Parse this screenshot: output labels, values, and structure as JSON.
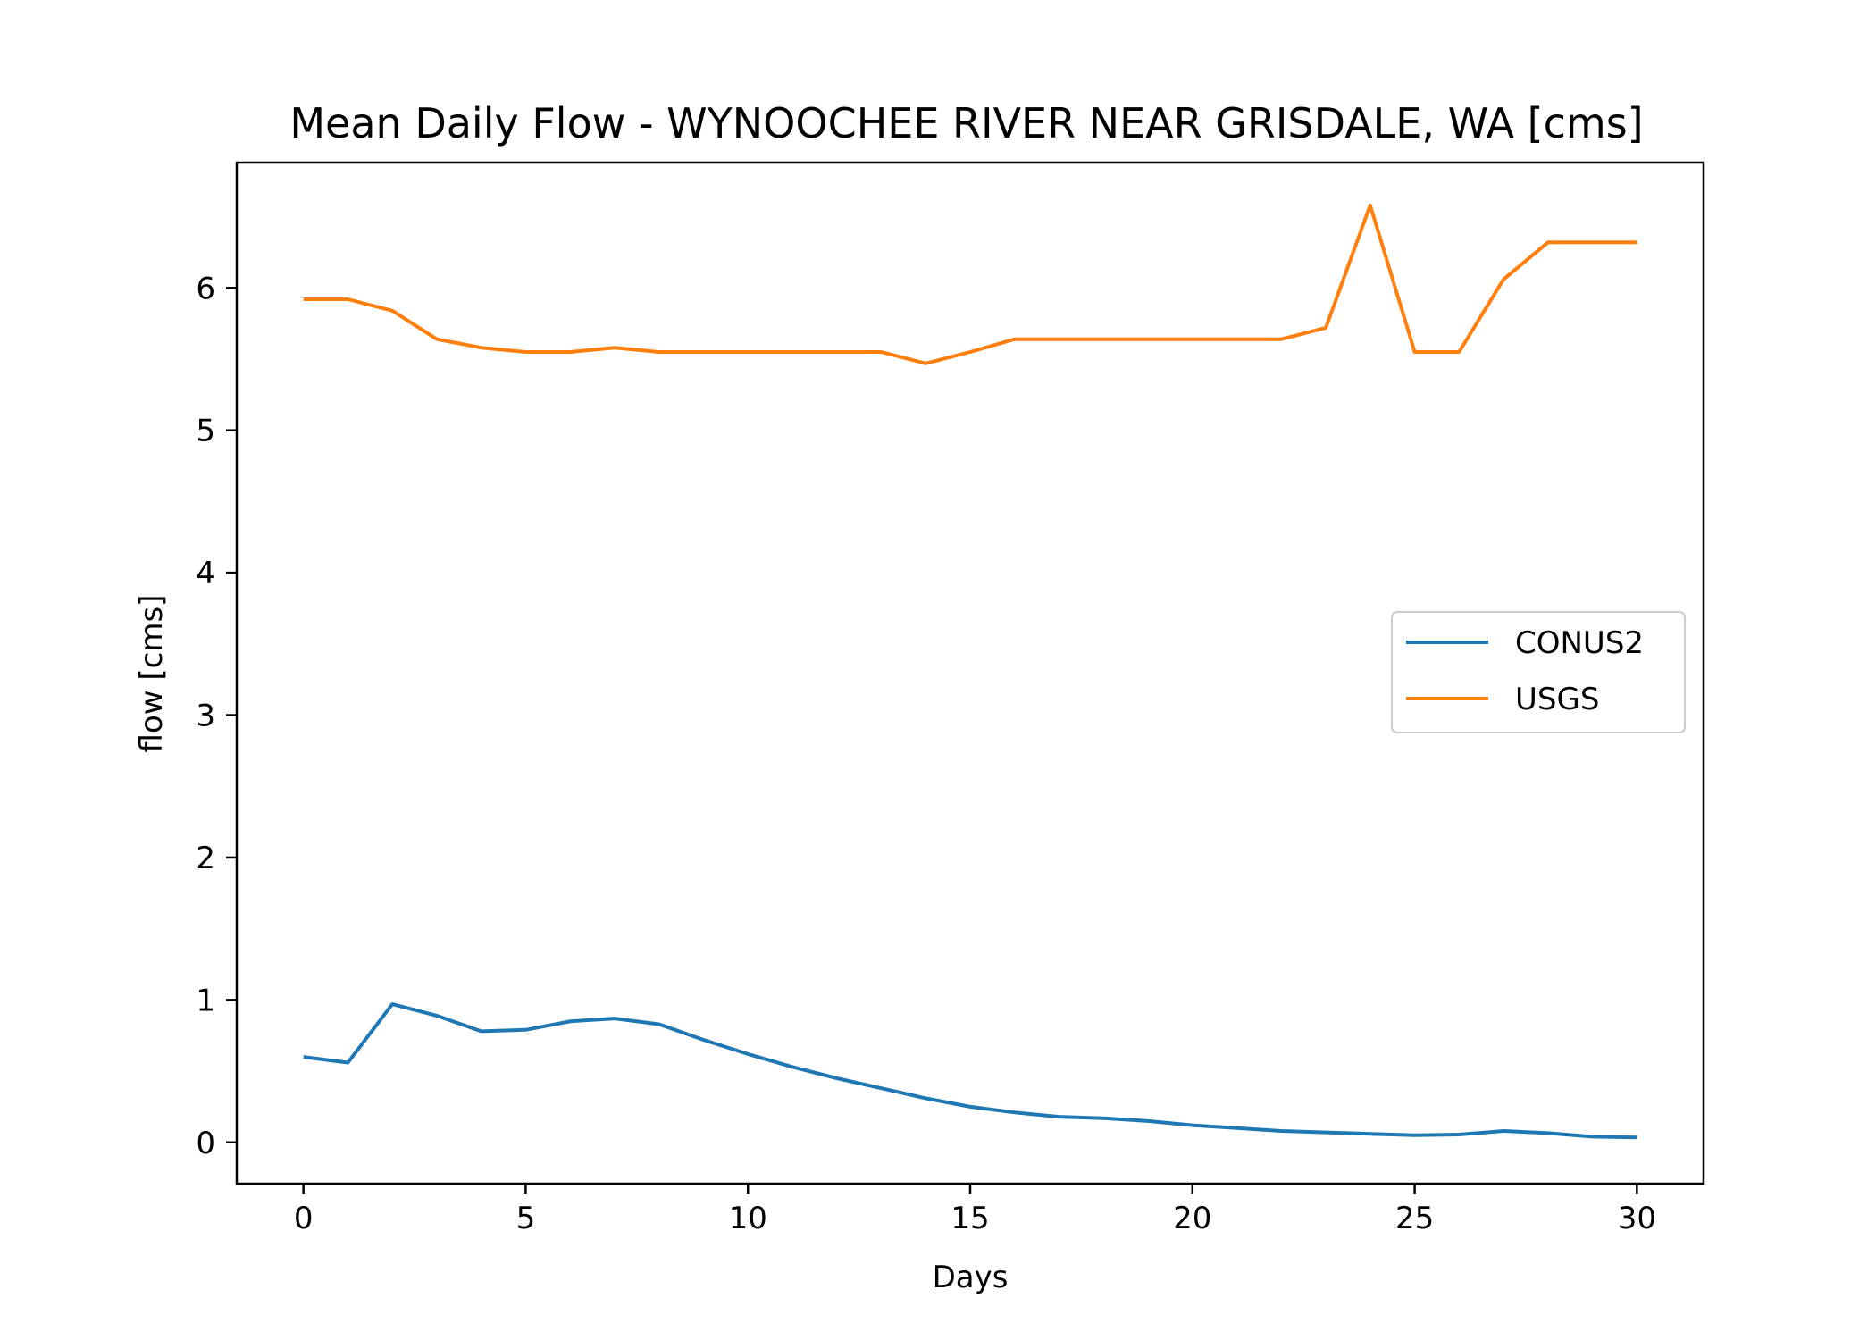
{
  "chart_data": {
    "type": "line",
    "title": "Mean Daily Flow - WYNOOCHEE RIVER NEAR GRISDALE, WA [cms]",
    "xlabel": "Days",
    "ylabel": "flow [cms]",
    "xlim": [
      -1.5,
      31.5
    ],
    "ylim": [
      -0.29,
      6.88
    ],
    "xticks": [
      0,
      5,
      10,
      15,
      20,
      25,
      30
    ],
    "yticks": [
      0,
      1,
      2,
      3,
      4,
      5,
      6
    ],
    "xtick_labels": [
      "0",
      "5",
      "10",
      "15",
      "20",
      "25",
      "30"
    ],
    "ytick_labels": [
      "0",
      "1",
      "2",
      "3",
      "4",
      "5",
      "6"
    ],
    "grid": false,
    "legend_position": "center-right",
    "x": [
      0,
      1,
      2,
      3,
      4,
      5,
      6,
      7,
      8,
      9,
      10,
      11,
      12,
      13,
      14,
      15,
      16,
      17,
      18,
      19,
      20,
      21,
      22,
      23,
      24,
      25,
      26,
      27,
      28,
      29,
      30
    ],
    "series": [
      {
        "name": "CONUS2",
        "color": "#1f77b4",
        "values": [
          0.6,
          0.56,
          0.97,
          0.89,
          0.78,
          0.79,
          0.85,
          0.87,
          0.83,
          0.72,
          0.62,
          0.53,
          0.45,
          0.38,
          0.31,
          0.25,
          0.21,
          0.18,
          0.17,
          0.15,
          0.12,
          0.1,
          0.08,
          0.07,
          0.06,
          0.05,
          0.055,
          0.08,
          0.065,
          0.04,
          0.035
        ]
      },
      {
        "name": "USGS",
        "color": "#ff7f0e",
        "values": [
          5.92,
          5.92,
          5.84,
          5.64,
          5.58,
          5.55,
          5.55,
          5.58,
          5.55,
          5.55,
          5.55,
          5.55,
          5.55,
          5.55,
          5.47,
          5.55,
          5.64,
          5.64,
          5.64,
          5.64,
          5.64,
          5.64,
          5.64,
          5.72,
          6.58,
          5.55,
          5.55,
          6.06,
          6.32,
          6.32,
          6.32
        ]
      }
    ]
  }
}
